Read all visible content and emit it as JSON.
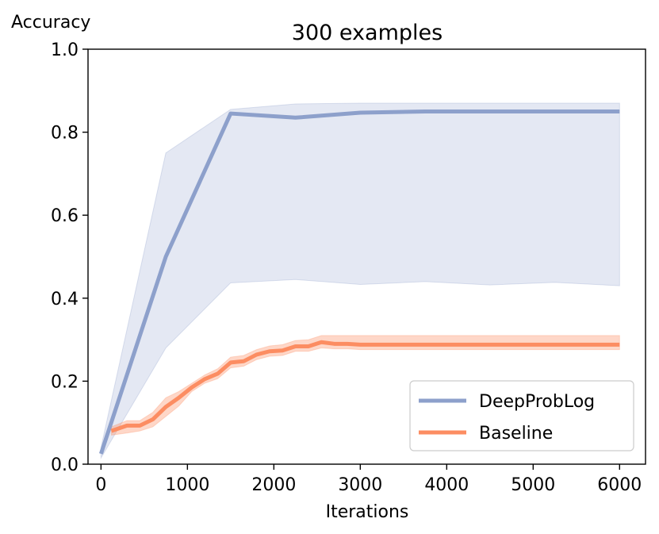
{
  "chart_data": {
    "type": "line",
    "title": "300 examples",
    "xlabel": "Iterations",
    "ylabel": "Accuracy",
    "xlim": [
      -150,
      6300
    ],
    "ylim": [
      0.0,
      1.0
    ],
    "xticks": [
      0,
      1000,
      2000,
      3000,
      4000,
      5000,
      6000
    ],
    "xtick_labels": [
      "0",
      "1000",
      "2000",
      "3000",
      "4000",
      "5000",
      "6000"
    ],
    "yticks": [
      0.0,
      0.2,
      0.4,
      0.6,
      0.8,
      1.0
    ],
    "ytick_labels": [
      "0.0",
      "0.2",
      "0.4",
      "0.6",
      "0.8",
      "1.0"
    ],
    "legend_position": "lower-right",
    "grid": false,
    "series": [
      {
        "name": "DeepProbLog",
        "color": "#8da0cb",
        "x": [
          0,
          750,
          1500,
          2250,
          3000,
          3750,
          4500,
          5250,
          6000
        ],
        "y": [
          0.025,
          0.5,
          0.845,
          0.835,
          0.847,
          0.85,
          0.85,
          0.85,
          0.85
        ],
        "y_upper": [
          0.04,
          0.75,
          0.855,
          0.868,
          0.87,
          0.87,
          0.87,
          0.87,
          0.87
        ],
        "y_lower": [
          0.015,
          0.28,
          0.437,
          0.445,
          0.433,
          0.44,
          0.432,
          0.438,
          0.43
        ]
      },
      {
        "name": "Baseline",
        "color": "#fc8d62",
        "x": [
          120,
          300,
          450,
          600,
          750,
          900,
          1050,
          1200,
          1350,
          1500,
          1650,
          1800,
          1950,
          2100,
          2250,
          2400,
          2550,
          2700,
          2850,
          3000,
          3300,
          3600,
          3900,
          4200,
          4500,
          4800,
          5100,
          5400,
          5700,
          6000
        ],
        "y": [
          0.08,
          0.093,
          0.093,
          0.108,
          0.138,
          0.16,
          0.185,
          0.205,
          0.218,
          0.245,
          0.248,
          0.264,
          0.272,
          0.274,
          0.284,
          0.284,
          0.294,
          0.29,
          0.29,
          0.288,
          0.288,
          0.288,
          0.288,
          0.288,
          0.288,
          0.288,
          0.288,
          0.288,
          0.288,
          0.288
        ],
        "y_upper": [
          0.09,
          0.105,
          0.105,
          0.125,
          0.16,
          0.175,
          0.195,
          0.215,
          0.23,
          0.258,
          0.262,
          0.276,
          0.285,
          0.288,
          0.298,
          0.3,
          0.31,
          0.31,
          0.31,
          0.31,
          0.31,
          0.31,
          0.31,
          0.31,
          0.31,
          0.31,
          0.31,
          0.31,
          0.31,
          0.31
        ],
        "y_lower": [
          0.07,
          0.075,
          0.08,
          0.09,
          0.115,
          0.14,
          0.175,
          0.195,
          0.206,
          0.232,
          0.236,
          0.252,
          0.26,
          0.262,
          0.272,
          0.272,
          0.28,
          0.278,
          0.278,
          0.276,
          0.276,
          0.276,
          0.276,
          0.276,
          0.276,
          0.276,
          0.276,
          0.276,
          0.276,
          0.276
        ]
      }
    ]
  }
}
